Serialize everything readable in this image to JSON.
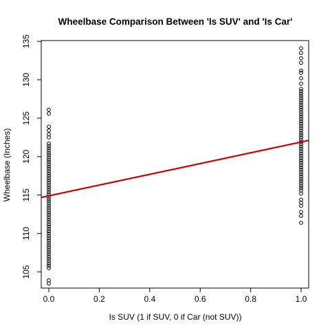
{
  "chart_data": {
    "type": "scatter",
    "title": "Wheelbase Comparison Between 'Is SUV' and 'Is Car'",
    "xlabel": "Is SUV (1 if SUV, 0 if Car (not SUV))",
    "ylabel": "Wheelbase (Inches)",
    "xlim": [
      -0.03,
      1.03
    ],
    "ylim": [
      102.9,
      135.1
    ],
    "x_ticks": [
      0.0,
      0.2,
      0.4,
      0.6,
      0.8,
      1.0
    ],
    "x_tick_labels": [
      "0.0",
      "0.2",
      "0.4",
      "0.6",
      "0.8",
      "1.0"
    ],
    "y_ticks": [
      105,
      110,
      115,
      120,
      125,
      130,
      135
    ],
    "y_tick_labels": [
      "105",
      "110",
      "115",
      "120",
      "125",
      "130",
      "135"
    ],
    "grid": false,
    "series": [
      {
        "x": 0,
        "y": [
          103.5,
          103.9,
          105.5,
          105.8,
          106.1,
          106.4,
          106.7,
          107.0,
          107.3,
          107.6,
          107.9,
          108.2,
          108.5,
          108.8,
          109.1,
          109.4,
          109.7,
          110.0,
          110.3,
          110.6,
          110.9,
          111.2,
          111.5,
          111.8,
          112.1,
          112.4,
          112.7,
          113.0,
          113.3,
          113.6,
          113.9,
          114.2,
          114.5,
          114.8,
          115.1,
          115.4,
          115.7,
          116.0,
          116.3,
          116.6,
          116.9,
          117.2,
          117.5,
          117.8,
          118.1,
          118.4,
          118.7,
          119.0,
          119.3,
          119.6,
          119.9,
          120.2,
          120.5,
          120.8,
          121.1,
          121.4,
          121.7,
          122.5,
          122.9,
          123.4,
          123.9,
          125.6,
          126.1
        ],
        "marker": "open-circle",
        "color": "#000000"
      },
      {
        "x": 1,
        "y": [
          111.4,
          112.3,
          112.8,
          113.6,
          114.0,
          114.4,
          115.2,
          115.6,
          115.9,
          116.2,
          116.5,
          116.8,
          117.1,
          117.4,
          117.7,
          118.0,
          118.3,
          118.6,
          118.9,
          119.2,
          119.5,
          119.8,
          120.1,
          120.4,
          120.7,
          121.0,
          121.3,
          121.6,
          121.9,
          122.2,
          122.5,
          122.8,
          123.1,
          123.4,
          123.7,
          124.0,
          124.3,
          124.6,
          124.9,
          125.2,
          125.5,
          125.8,
          126.1,
          126.4,
          126.7,
          127.0,
          127.3,
          127.6,
          127.9,
          128.2,
          128.5,
          128.8,
          129.5,
          130.2,
          130.9,
          131.2,
          132.2,
          132.8,
          133.5,
          134.1
        ],
        "marker": "open-circle",
        "color": "#000000"
      }
    ],
    "regression_line": {
      "intercept": 114.9,
      "slope": 7.0,
      "color": "#cc0000"
    }
  }
}
